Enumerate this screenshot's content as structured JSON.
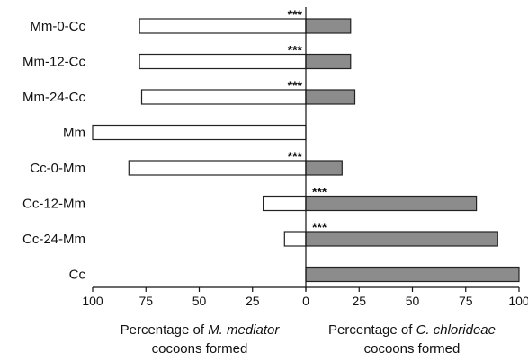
{
  "chart_data": {
    "type": "bar",
    "orientation": "horizontal",
    "layout": "diverging",
    "categories": [
      "Mm-0-Cc",
      "Mm-12-Cc",
      "Mm-24-Cc",
      "Mm",
      "Cc-0-Mm",
      "Cc-12-Mm",
      "Cc-24-Mm",
      "Cc"
    ],
    "series": [
      {
        "side": "left",
        "values": [
          78,
          78,
          77,
          100,
          83,
          20,
          10,
          0
        ],
        "color": "#ffffff",
        "stroke": "#222222"
      },
      {
        "side": "right",
        "values": [
          21,
          21,
          23,
          0,
          17,
          80,
          90,
          100
        ],
        "color": "#8c8c8c",
        "stroke": "#222222"
      }
    ],
    "significance": [
      {
        "category": "Mm-0-Cc",
        "label": "***",
        "side": "left"
      },
      {
        "category": "Mm-12-Cc",
        "label": "***",
        "side": "left"
      },
      {
        "category": "Mm-24-Cc",
        "label": "***",
        "side": "left"
      },
      {
        "category": "Cc-0-Mm",
        "label": "***",
        "side": "left"
      },
      {
        "category": "Cc-12-Mm",
        "label": "***",
        "side": "right"
      },
      {
        "category": "Cc-24-Mm",
        "label": "***",
        "side": "right"
      }
    ],
    "x_left": {
      "range": [
        100,
        0
      ],
      "ticks": [
        "100",
        "75",
        "50",
        "25",
        "0"
      ],
      "title_parts": [
        "Percentage of ",
        "M. mediator"
      ],
      "title_line2": "cocoons formed"
    },
    "x_right": {
      "range": [
        0,
        100
      ],
      "ticks": [
        "25",
        "50",
        "75",
        "100"
      ],
      "title_parts": [
        "Percentage of ",
        "C. chlorideae"
      ],
      "title_line2": "cocoons formed"
    },
    "grid": false,
    "legend": "none"
  }
}
